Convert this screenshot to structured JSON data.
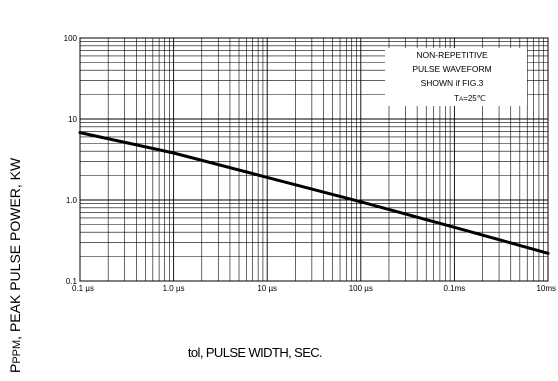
{
  "chart_data": {
    "type": "line",
    "x_scale": "log",
    "y_scale": "log",
    "xlim": [
      "0.1 µs",
      "10 ms"
    ],
    "ylim": [
      0.1,
      100
    ],
    "grid": true,
    "ylabel": "PPPM, PEAK PULSE POWER, KW",
    "ylabel_parts": {
      "main": "P",
      "sub": "PPM",
      "rest": ", PEAK PULSE POWER, KW"
    },
    "xlabel": "tol, PULSE WIDTH, SEC.",
    "x_tick_labels": [
      "0.1 µs",
      "1.0 µs",
      "10 µs",
      "100 µs",
      "0.1ms",
      "10ms"
    ],
    "y_tick_labels": [
      "100",
      "10",
      "1.0",
      "0.1"
    ],
    "series": [
      {
        "x_seconds": [
          1e-07,
          1e-06,
          1e-05,
          0.0001,
          0.001,
          0.01
        ],
        "y": [
          6.8,
          3.8,
          1.9,
          0.95,
          0.46,
          0.22
        ]
      }
    ],
    "annotation": {
      "lines": [
        "NON-REPETITIVE",
        "PULSE WAVEFORM",
        "SHOWN if FIG.3"
      ],
      "temp": {
        "main": "T",
        "sub": "A",
        "rest": "=25℃"
      }
    }
  }
}
